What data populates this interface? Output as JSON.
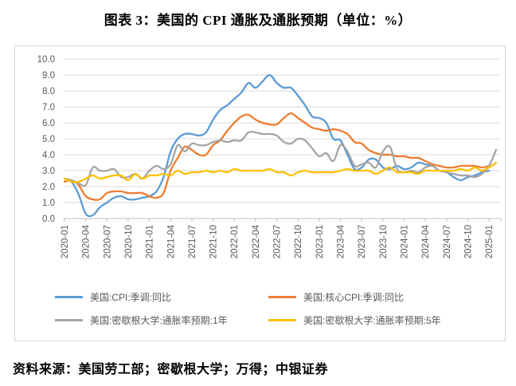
{
  "title": "图表 3：美国的 CPI 通胀及通胀预期（单位：%）",
  "source_note": "资料来源：美国劳工部；密歇根大学；万得；中银证券",
  "colors": {
    "background": "#ffffff",
    "chart_border": "#d4d4d4",
    "gridline": "#d9d9d9",
    "axis_line": "#bfbfbf",
    "axis_label": "#595959",
    "legend_text": "#595959",
    "title_text": "#000000"
  },
  "chart_data": {
    "type": "line",
    "title": "图表 3：美国的 CPI 通胀及通胀预期（单位：%）",
    "grid": "horizontal",
    "legend_position": "bottom",
    "ylim": [
      0.0,
      10.0
    ],
    "y_tick_step": 1.0,
    "y_tick_labels": [
      "10.0",
      "9.0",
      "8.0",
      "7.0",
      "6.0",
      "5.0",
      "4.0",
      "3.0",
      "2.0",
      "1.0",
      "0.0"
    ],
    "x_tick_labels": [
      "2020-01",
      "2020-04",
      "2020-07",
      "2020-10",
      "2021-01",
      "2021-04",
      "2021-07",
      "2021-10",
      "2022-01",
      "2022-04",
      "2022-07",
      "2022-10",
      "2023-01",
      "2023-04",
      "2023-07",
      "2023-10",
      "2024-01",
      "2024-04",
      "2024-07",
      "2024-10",
      "2025-01"
    ],
    "x_tick_interval_months": 3,
    "months_total": 62,
    "series": [
      {
        "name": "美国:CPI:季调:同比",
        "color": "#5B9BD5",
        "values": [
          2.5,
          2.3,
          1.5,
          0.3,
          0.2,
          0.7,
          1.0,
          1.3,
          1.4,
          1.2,
          1.2,
          1.3,
          1.4,
          1.7,
          2.6,
          4.2,
          5.0,
          5.3,
          5.3,
          5.2,
          5.4,
          6.2,
          6.8,
          7.1,
          7.5,
          7.9,
          8.5,
          8.2,
          8.6,
          9.0,
          8.5,
          8.2,
          8.2,
          7.7,
          7.1,
          6.4,
          6.3,
          6.0,
          5.0,
          4.9,
          4.0,
          3.1,
          3.2,
          3.7,
          3.7,
          3.2,
          3.1,
          3.3,
          3.1,
          3.2,
          3.5,
          3.4,
          3.3,
          3.0,
          2.9,
          2.6,
          2.4,
          2.6,
          2.7,
          2.9,
          3.0
        ]
      },
      {
        "name": "美国:核心CPI:季调:同比",
        "color": "#ED7D31",
        "values": [
          2.3,
          2.4,
          2.1,
          1.4,
          1.2,
          1.2,
          1.6,
          1.7,
          1.7,
          1.6,
          1.6,
          1.6,
          1.4,
          1.3,
          1.6,
          3.0,
          3.8,
          4.5,
          4.3,
          4.0,
          4.0,
          4.6,
          4.9,
          5.5,
          6.0,
          6.4,
          6.5,
          6.2,
          6.0,
          5.9,
          5.9,
          6.3,
          6.6,
          6.3,
          6.0,
          5.7,
          5.6,
          5.5,
          5.6,
          5.5,
          5.3,
          4.8,
          4.7,
          4.3,
          4.1,
          4.0,
          4.0,
          3.9,
          3.9,
          3.8,
          3.8,
          3.6,
          3.4,
          3.3,
          3.2,
          3.2,
          3.3,
          3.3,
          3.3,
          3.2,
          3.3
        ]
      },
      {
        "name": "美国:密歇根大学:通胀率预期:1年",
        "color": "#A5A5A5",
        "values": [
          2.5,
          2.4,
          2.2,
          2.1,
          3.2,
          3.0,
          3.0,
          3.1,
          2.6,
          2.6,
          2.8,
          2.5,
          3.0,
          3.3,
          3.1,
          3.4,
          4.6,
          4.2,
          4.7,
          4.6,
          4.6,
          4.8,
          4.9,
          4.8,
          4.9,
          4.9,
          5.4,
          5.4,
          5.3,
          5.3,
          5.2,
          4.8,
          4.7,
          5.0,
          4.9,
          4.4,
          3.9,
          4.1,
          3.6,
          4.6,
          4.2,
          3.3,
          3.4,
          3.5,
          3.2,
          4.2,
          4.5,
          3.1,
          2.9,
          3.0,
          2.9,
          3.2,
          3.3,
          3.0,
          2.9,
          2.8,
          2.7,
          2.7,
          2.6,
          2.8,
          3.3,
          4.3
        ]
      },
      {
        "name": "美国:密歇根大学:通胀率预期:5年",
        "color": "#FFC000",
        "values": [
          2.5,
          2.3,
          2.3,
          2.5,
          2.7,
          2.5,
          2.6,
          2.7,
          2.7,
          2.4,
          2.8,
          2.5,
          2.7,
          2.7,
          2.8,
          2.7,
          3.0,
          2.8,
          2.9,
          2.9,
          3.0,
          2.9,
          3.0,
          2.9,
          3.1,
          3.0,
          3.0,
          3.0,
          3.0,
          3.1,
          2.9,
          2.9,
          2.7,
          2.9,
          3.0,
          2.9,
          2.9,
          2.9,
          2.9,
          3.0,
          3.1,
          3.0,
          3.0,
          3.0,
          2.8,
          3.0,
          3.2,
          2.9,
          2.9,
          2.9,
          2.8,
          3.0,
          3.0,
          3.0,
          3.0,
          3.0,
          3.1,
          3.0,
          3.2,
          3.0,
          3.2,
          3.5
        ]
      }
    ]
  }
}
